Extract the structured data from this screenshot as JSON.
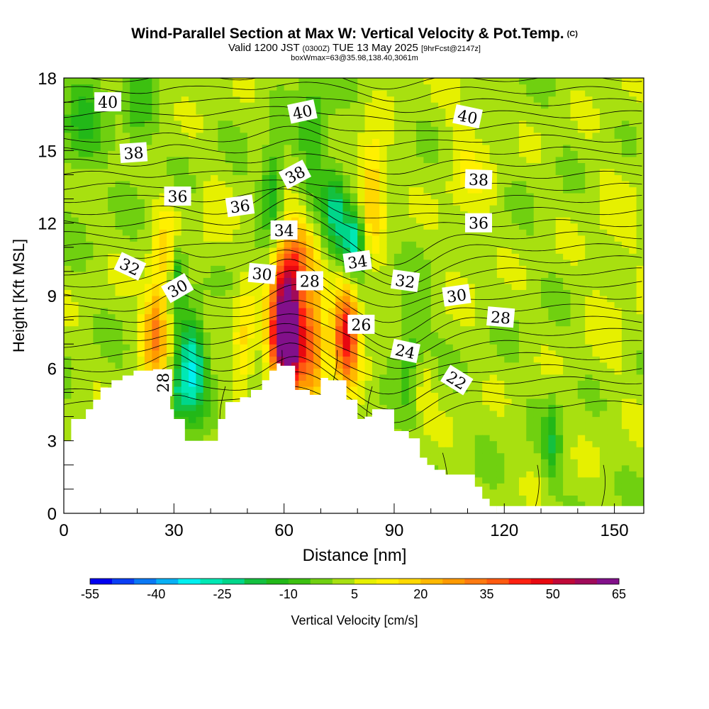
{
  "header": {
    "title": "Wind-Parallel Section at Max W: Vertical Velocity & Pot.Temp.",
    "copyright": "(C)",
    "valid_prefix": "Valid 1200 JST",
    "valid_zulu": "(0300Z)",
    "valid_date": "TUE 13 May 2025",
    "forecast_info": "[9hrFcst@2147z]",
    "box_info": "boxWmax=63@35.98,138.40,3061m"
  },
  "chart_data": {
    "type": "heatmap",
    "title": "Wind-Parallel Section at Max W: Vertical Velocity & Pot.Temp.",
    "xlabel": "Distance [nm]",
    "ylabel": "Height [Kft MSL]",
    "xlim": [
      0,
      158
    ],
    "ylim": [
      0,
      18
    ],
    "x_ticks": [
      0,
      30,
      60,
      90,
      120,
      150
    ],
    "y_ticks": [
      0,
      3,
      6,
      9,
      12,
      15,
      18
    ],
    "colorbar": {
      "label": "Vertical Velocity [cm/s]",
      "tick_labels": [
        "-55",
        "-40",
        "-25",
        "-10",
        "5",
        "20",
        "35",
        "50",
        "65"
      ],
      "tick_values": [
        -55,
        -40,
        -25,
        -10,
        5,
        20,
        35,
        50,
        65
      ],
      "bins": [
        -55,
        -50,
        -45,
        -40,
        -35,
        -30,
        -25,
        -20,
        -15,
        -10,
        -5,
        0,
        5,
        10,
        15,
        20,
        25,
        30,
        35,
        40,
        45,
        50,
        55,
        60,
        65
      ],
      "colors": [
        "#0000f0",
        "#0a3ef5",
        "#0a78f5",
        "#08b0f5",
        "#00f0f0",
        "#00e8b4",
        "#00d68a",
        "#14c040",
        "#22b818",
        "#3cc010",
        "#70d010",
        "#a8e010",
        "#e6f000",
        "#fff000",
        "#ffd800",
        "#ffb800",
        "#ff9a00",
        "#ff7a10",
        "#ff5a10",
        "#ff2010",
        "#e80810",
        "#c00838",
        "#a00a5a",
        "#82108a"
      ]
    },
    "updraft_max": 63,
    "terrain": {
      "x": [
        0,
        2,
        2,
        6,
        6,
        8,
        8,
        10,
        10,
        13,
        13,
        16,
        16,
        19,
        19,
        29,
        29,
        30,
        30,
        33,
        33,
        42,
        42,
        44,
        44,
        48,
        48,
        51,
        51,
        54,
        54,
        56,
        56,
        58,
        58,
        59,
        59,
        63,
        63,
        67,
        67,
        70,
        70,
        72,
        72,
        77,
        77,
        80,
        80,
        82,
        82,
        84,
        84,
        90,
        90,
        94,
        94,
        97,
        97,
        99,
        99,
        101,
        101,
        104,
        104,
        112,
        112,
        114,
        114,
        116,
        116,
        118,
        118
      ],
      "y": [
        3.0,
        3.0,
        3.9,
        3.9,
        4.3,
        4.3,
        4.7,
        4.7,
        5.2,
        5.2,
        5.5,
        5.5,
        5.7,
        5.7,
        5.9,
        5.9,
        4.3,
        4.3,
        3.9,
        3.9,
        3.0,
        3.0,
        3.9,
        3.9,
        4.6,
        4.6,
        4.8,
        4.8,
        5.1,
        5.1,
        5.5,
        5.5,
        5.9,
        5.9,
        6.2,
        6.2,
        6.1,
        6.1,
        5.1,
        5.1,
        4.9,
        4.9,
        5.6,
        5.6,
        5.5,
        5.5,
        4.7,
        4.7,
        3.9,
        3.9,
        4.0,
        4.0,
        4.3,
        4.3,
        3.4,
        3.4,
        3.1,
        3.1,
        2.3,
        2.3,
        2.0,
        2.0,
        1.8,
        1.8,
        1.6,
        1.6,
        1.1,
        1.1,
        0.6,
        0.6,
        0.3,
        0.3,
        0.0
      ]
    },
    "theta_labels": [
      {
        "text": "40",
        "x": 12,
        "y": 17.0,
        "angle": 0
      },
      {
        "text": "40",
        "x": 65,
        "y": 16.6,
        "angle": 12
      },
      {
        "text": "40",
        "x": 110,
        "y": 16.4,
        "angle": -12
      },
      {
        "text": "38",
        "x": 19,
        "y": 14.9,
        "angle": 4
      },
      {
        "text": "38",
        "x": 63,
        "y": 14.0,
        "angle": 28
      },
      {
        "text": "38",
        "x": 113,
        "y": 13.8,
        "angle": -2
      },
      {
        "text": "36",
        "x": 31,
        "y": 13.1,
        "angle": 0
      },
      {
        "text": "36",
        "x": 48,
        "y": 12.7,
        "angle": 8
      },
      {
        "text": "36",
        "x": 113,
        "y": 12.0,
        "angle": 0
      },
      {
        "text": "34",
        "x": 60,
        "y": 11.7,
        "angle": 0
      },
      {
        "text": "34",
        "x": 80,
        "y": 10.4,
        "angle": 8
      },
      {
        "text": "32",
        "x": 18,
        "y": 10.2,
        "angle": -25
      },
      {
        "text": "32",
        "x": 93,
        "y": 9.6,
        "angle": -8
      },
      {
        "text": "30",
        "x": 31,
        "y": 9.3,
        "angle": 30
      },
      {
        "text": "30",
        "x": 54,
        "y": 9.9,
        "angle": -5
      },
      {
        "text": "30",
        "x": 107,
        "y": 9.0,
        "angle": 8
      },
      {
        "text": "28",
        "x": 67,
        "y": 9.6,
        "angle": 0
      },
      {
        "text": "28",
        "x": 119,
        "y": 8.1,
        "angle": -5
      },
      {
        "text": "28",
        "x": 27,
        "y": 5.4,
        "angle": 90
      },
      {
        "text": "26",
        "x": 81,
        "y": 7.8,
        "angle": 0
      },
      {
        "text": "24",
        "x": 93,
        "y": 6.7,
        "angle": -12
      },
      {
        "text": "22",
        "x": 107,
        "y": 5.5,
        "angle": -32
      }
    ],
    "vv_features": [
      {
        "x": 61,
        "y": 8.2,
        "sx": 3.0,
        "sy": 2.0,
        "v": 70
      },
      {
        "x": 61,
        "y": 6.8,
        "sx": 3.5,
        "sy": 1.0,
        "v": 25
      },
      {
        "x": 77,
        "y": 7.5,
        "sx": 2.5,
        "sy": 1.5,
        "v": 45
      },
      {
        "x": 68,
        "y": 7.0,
        "sx": 2.3,
        "sy": 1.8,
        "v": 28
      },
      {
        "x": 25,
        "y": 7.6,
        "sx": 2.5,
        "sy": 1.4,
        "v": 30
      },
      {
        "x": 35,
        "y": 6.1,
        "sx": 2.6,
        "sy": 1.5,
        "v": -32
      },
      {
        "x": 31,
        "y": 5.0,
        "sx": 1.5,
        "sy": 1.0,
        "v": -15
      },
      {
        "x": 79,
        "y": 11.2,
        "sx": 2.3,
        "sy": 1.0,
        "v": -35
      },
      {
        "x": 74,
        "y": 12.5,
        "sx": 2.0,
        "sy": 1.2,
        "v": -22
      },
      {
        "x": 84,
        "y": 13.3,
        "sx": 2.5,
        "sy": 1.6,
        "v": 22
      },
      {
        "x": 57,
        "y": 13.3,
        "sx": 2.0,
        "sy": 1.2,
        "v": -20
      },
      {
        "x": 31,
        "y": 10.0,
        "sx": 1.5,
        "sy": 1.0,
        "v": -20
      },
      {
        "x": 68,
        "y": 15.5,
        "sx": 3.0,
        "sy": 2.5,
        "v": -10
      },
      {
        "x": 5,
        "y": 16.0,
        "sx": 4.0,
        "sy": 1.5,
        "v": -12
      },
      {
        "x": 20,
        "y": 16.5,
        "sx": 3.0,
        "sy": 1.5,
        "v": -10
      },
      {
        "x": 28,
        "y": 11.0,
        "sx": 2.5,
        "sy": 1.5,
        "v": 12
      },
      {
        "x": 65,
        "y": 11.0,
        "sx": 3.0,
        "sy": 1.0,
        "v": 15
      },
      {
        "x": 49,
        "y": 7.0,
        "sx": 2.0,
        "sy": 1.6,
        "v": 15
      },
      {
        "x": 95,
        "y": 6.8,
        "sx": 3.0,
        "sy": 1.6,
        "v": -12
      },
      {
        "x": 98,
        "y": 5.2,
        "sx": 2.0,
        "sy": 1.0,
        "v": 10
      },
      {
        "x": 133,
        "y": 2.8,
        "sx": 1.5,
        "sy": 1.2,
        "v": -15
      },
      {
        "x": 40,
        "y": 12.0,
        "sx": 3.0,
        "sy": 1.5,
        "v": 5
      },
      {
        "x": 110,
        "y": 14.0,
        "sx": 5.0,
        "sy": 3.0,
        "v": 6
      },
      {
        "x": 150,
        "y": 10.0,
        "sx": 6.0,
        "sy": 4.0,
        "v": 4
      }
    ]
  }
}
